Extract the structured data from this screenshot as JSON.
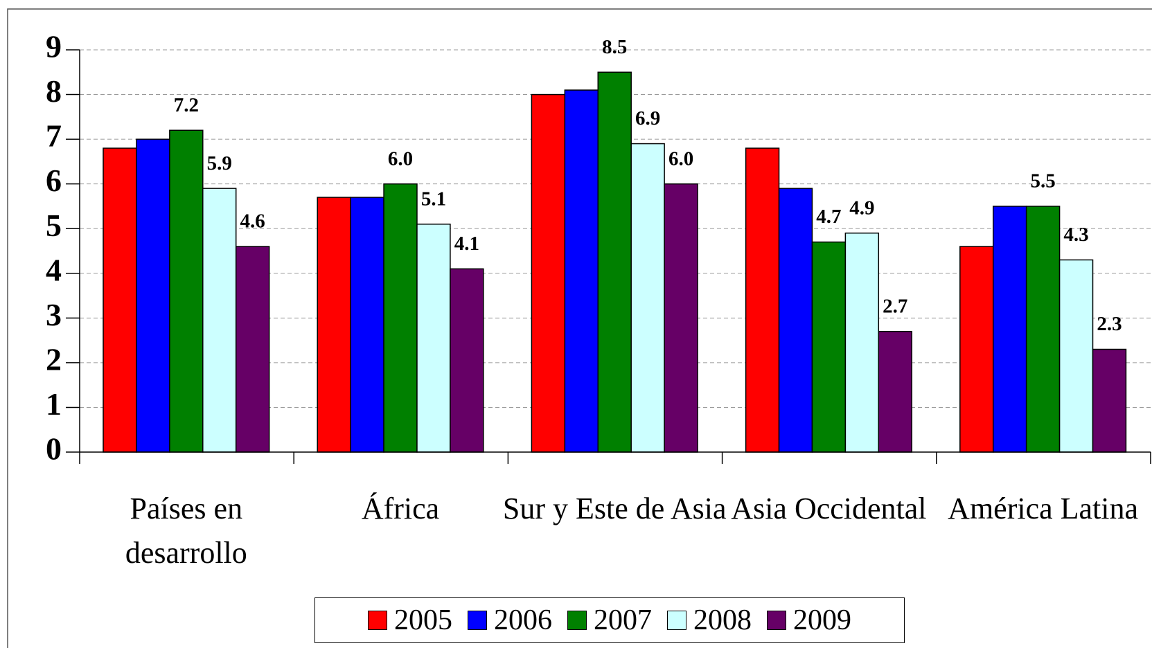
{
  "chart_data": {
    "type": "bar",
    "categories": [
      "Países en desarrollo",
      "África",
      "Sur y Este de Asia",
      "Asia Occidental",
      "América Latina"
    ],
    "series": [
      {
        "name": "2005",
        "color": "#ff0000",
        "values": [
          6.8,
          5.7,
          8.0,
          6.8,
          4.6
        ],
        "value_labels": [
          null,
          null,
          null,
          null,
          null
        ]
      },
      {
        "name": "2006",
        "color": "#0000ff",
        "values": [
          7.0,
          5.7,
          8.1,
          5.9,
          5.5
        ],
        "value_labels": [
          null,
          null,
          null,
          null,
          null
        ]
      },
      {
        "name": "2007",
        "color": "#008000",
        "values": [
          7.2,
          6.0,
          8.5,
          4.7,
          5.5
        ],
        "value_labels": [
          "7.2",
          "6.0",
          "8.5",
          "4.7",
          "5.5"
        ]
      },
      {
        "name": "2008",
        "color": "#ccffff",
        "values": [
          5.9,
          5.1,
          6.9,
          4.9,
          4.3
        ],
        "value_labels": [
          "5.9",
          "5.1",
          "6.9",
          "4.9",
          "4.3"
        ]
      },
      {
        "name": "2009",
        "color": "#660066",
        "values": [
          4.6,
          4.1,
          6.0,
          2.7,
          2.3
        ],
        "value_labels": [
          "4.6",
          "4.1",
          "6.0",
          "2.7",
          "2.3"
        ]
      }
    ],
    "ylim": [
      0,
      9
    ],
    "yticks": [
      0,
      1,
      2,
      3,
      4,
      5,
      6,
      7,
      8,
      9
    ],
    "grid": true,
    "legend": "bottom"
  }
}
